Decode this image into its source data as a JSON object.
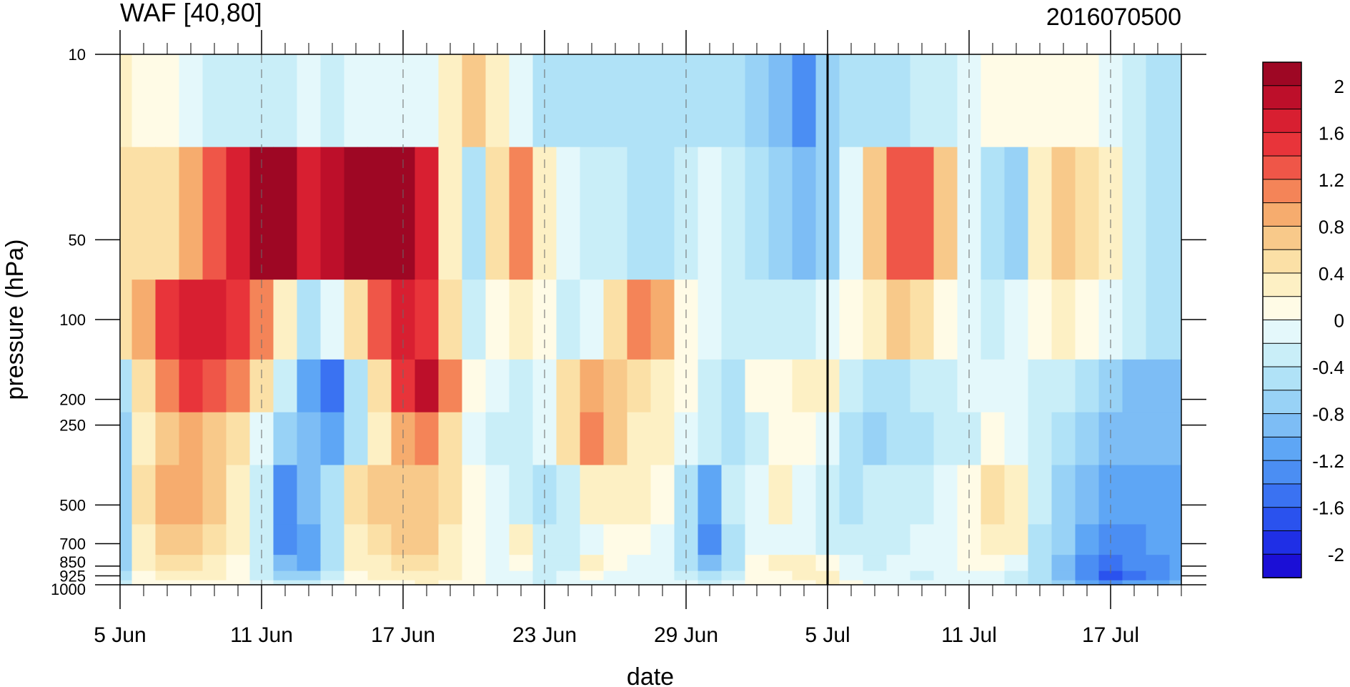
{
  "chart_data": {
    "type": "heatmap",
    "title": "WAF [40,80]",
    "subtitle": "2016070500",
    "xlabel": "date",
    "ylabel": "pressure (hPa)",
    "x": [
      "5 Jun",
      "6 Jun",
      "7 Jun",
      "8 Jun",
      "9 Jun",
      "10 Jun",
      "11 Jun",
      "12 Jun",
      "13 Jun",
      "14 Jun",
      "15 Jun",
      "16 Jun",
      "17 Jun",
      "18 Jun",
      "19 Jun",
      "20 Jun",
      "21 Jun",
      "22 Jun",
      "23 Jun",
      "24 Jun",
      "25 Jun",
      "26 Jun",
      "27 Jun",
      "28 Jun",
      "29 Jun",
      "30 Jun",
      "1 Jul",
      "2 Jul",
      "3 Jul",
      "4 Jul",
      "5 Jul",
      "6 Jul",
      "7 Jul",
      "8 Jul",
      "9 Jul",
      "10 Jul",
      "11 Jul",
      "12 Jul",
      "13 Jul",
      "14 Jul",
      "15 Jul",
      "16 Jul",
      "17 Jul",
      "18 Jul",
      "19 Jul",
      "20 Jul"
    ],
    "x_ticks": [
      "5 Jun",
      "11 Jun",
      "17 Jun",
      "23 Jun",
      "29 Jun",
      "5 Jul",
      "11 Jul",
      "17 Jul"
    ],
    "y_levels": [
      10,
      50,
      100,
      200,
      250,
      500,
      700,
      850,
      925,
      1000
    ],
    "y_ticks": [
      "10",
      "50",
      "100",
      "200",
      "250",
      "500",
      "700",
      "850",
      "925",
      "1000"
    ],
    "y_scale": "log",
    "y_inverted": true,
    "marker_date": "5 Jul",
    "colorbar": {
      "levels": [
        -2.2,
        -2,
        -1.8,
        -1.6,
        -1.4,
        -1.2,
        -1,
        -0.8,
        -0.6,
        -0.4,
        -0.2,
        0,
        0.2,
        0.4,
        0.6,
        0.8,
        1,
        1.2,
        1.4,
        1.6,
        1.8,
        2,
        2.2
      ],
      "labels": [
        "2",
        "1.6",
        "1.2",
        "0.8",
        "0.4",
        "0",
        "-0.4",
        "-0.8",
        "-1.2",
        "-1.6",
        "-2"
      ],
      "colors": [
        "#1b0fd6",
        "#1f2fe6",
        "#2a52ee",
        "#3a72f2",
        "#4b8ef3",
        "#5ea6f5",
        "#7dbdf5",
        "#98d2f6",
        "#b0e2f7",
        "#c9eef8",
        "#e4f8fb",
        "#fffbe6",
        "#fdf0c4",
        "#fbe0a6",
        "#f8c98a",
        "#f6ac6e",
        "#f48458",
        "#ef5648",
        "#e8343a",
        "#d81f31",
        "#bd0f2a",
        "#9e0724"
      ]
    },
    "values": [
      [
        0.3,
        0.0,
        0.0,
        -0.2,
        -0.3,
        -0.3,
        -0.3,
        -0.3,
        -0.2,
        -0.3,
        -0.2,
        -0.1,
        -0.2,
        -0.1,
        0.3,
        0.6,
        0.3,
        -0.2,
        -0.5,
        -0.6,
        -0.5,
        -0.5,
        -0.6,
        -0.6,
        -0.6,
        -0.5,
        -0.6,
        -0.7,
        -1.0,
        -1.3,
        -0.8,
        -0.6,
        -0.5,
        -0.5,
        -0.4,
        -0.3,
        -0.2,
        0.0,
        0.0,
        0.1,
        0.0,
        0.0,
        -0.2,
        -0.3,
        -0.5,
        -0.5
      ],
      [
        0.5,
        0.4,
        0.5,
        0.8,
        1.2,
        1.6,
        2.0,
        2.0,
        1.6,
        1.8,
        2.1,
        2.2,
        2.0,
        1.6,
        0.2,
        -0.5,
        0.4,
        1.0,
        0.3,
        -0.2,
        -0.3,
        -0.4,
        -0.5,
        -0.5,
        -0.3,
        -0.1,
        -0.4,
        -0.6,
        -0.8,
        -1.0,
        -0.7,
        -0.2,
        0.6,
        1.3,
        1.2,
        0.6,
        -0.1,
        -0.6,
        -0.7,
        0.3,
        0.6,
        0.5,
        0.2,
        -0.3,
        -0.5,
        -0.6
      ],
      [
        0.5,
        0.8,
        1.4,
        1.6,
        1.6,
        1.5,
        1.1,
        0.2,
        -0.5,
        -0.2,
        0.4,
        1.2,
        1.6,
        1.4,
        0.5,
        -0.4,
        0.0,
        0.3,
        0.0,
        -0.3,
        -0.1,
        0.5,
        1.0,
        0.8,
        0.1,
        -0.2,
        -0.3,
        -0.3,
        -0.3,
        -0.3,
        -0.2,
        0.1,
        0.3,
        0.6,
        0.4,
        0.1,
        -0.2,
        -0.3,
        -0.2,
        0.0,
        0.2,
        0.1,
        -0.2,
        -0.4,
        -0.5,
        -0.6
      ],
      [
        -0.5,
        0.4,
        1.1,
        1.4,
        1.3,
        1.0,
        0.4,
        -0.4,
        -1.2,
        -1.6,
        -0.5,
        0.4,
        1.4,
        1.8,
        1.0,
        0.0,
        -0.2,
        -0.3,
        -0.1,
        0.4,
        0.8,
        0.6,
        0.4,
        0.3,
        0.0,
        -0.3,
        -0.5,
        0.0,
        0.1,
        0.2,
        0.3,
        -0.4,
        -0.5,
        -0.5,
        -0.4,
        -0.3,
        -0.2,
        -0.1,
        -0.2,
        -0.3,
        -0.4,
        -0.6,
        -0.8,
        -0.9,
        -1.0,
        -0.9
      ],
      [
        -0.7,
        0.3,
        0.7,
        0.8,
        0.7,
        0.4,
        -0.2,
        -0.8,
        -1.0,
        -1.1,
        -0.6,
        0.3,
        0.9,
        1.1,
        0.5,
        -0.1,
        -0.3,
        -0.3,
        -0.2,
        0.5,
        1.0,
        0.6,
        0.3,
        0.2,
        -0.2,
        -0.4,
        -0.5,
        -0.3,
        0.1,
        0.0,
        -0.1,
        -0.6,
        -0.7,
        -0.6,
        -0.5,
        -0.4,
        -0.3,
        0.0,
        -0.2,
        -0.4,
        -0.6,
        -0.8,
        -0.9,
        -1.0,
        -1.0,
        -0.9
      ],
      [
        -0.8,
        0.4,
        0.8,
        0.8,
        0.6,
        0.3,
        -0.3,
        -1.3,
        -0.9,
        -0.5,
        0.4,
        0.6,
        0.6,
        0.6,
        0.4,
        0.0,
        -0.2,
        -0.3,
        -0.5,
        -0.3,
        0.2,
        0.3,
        0.3,
        0.1,
        -0.5,
        -1.2,
        -0.4,
        -0.1,
        0.2,
        -0.2,
        -0.3,
        -0.5,
        -0.4,
        -0.3,
        -0.3,
        -0.2,
        0.0,
        0.4,
        0.3,
        -0.4,
        -0.7,
        -0.9,
        -1.1,
        -1.2,
        -1.2,
        -1.1
      ],
      [
        -0.8,
        0.3,
        0.6,
        0.6,
        0.5,
        0.2,
        -0.4,
        -1.4,
        -1.2,
        -0.6,
        0.3,
        0.5,
        0.6,
        0.6,
        0.3,
        0.0,
        -0.1,
        0.2,
        -0.3,
        -0.4,
        -0.1,
        0.0,
        0.0,
        -0.1,
        -0.6,
        -1.4,
        -0.5,
        -0.2,
        -0.1,
        -0.2,
        -0.3,
        -0.4,
        -0.4,
        -0.3,
        -0.2,
        -0.2,
        0.0,
        0.3,
        0.2,
        -0.5,
        -0.8,
        -1.1,
        -1.3,
        -1.3,
        -1.2,
        -1.1
      ],
      [
        -0.7,
        0.2,
        0.4,
        0.4,
        0.3,
        0.1,
        -0.4,
        -1.0,
        -1.1,
        -0.5,
        0.2,
        0.3,
        0.4,
        0.5,
        0.3,
        0.0,
        -0.1,
        0.0,
        -0.3,
        -0.4,
        0.2,
        0.0,
        -0.1,
        -0.2,
        -0.5,
        -1.0,
        -0.5,
        0.1,
        0.2,
        0.2,
        0.1,
        -0.2,
        -0.3,
        -0.2,
        -0.2,
        -0.1,
        0.1,
        0.0,
        -0.2,
        -0.6,
        -0.9,
        -1.3,
        -1.5,
        -1.4,
        -1.3,
        -1.1
      ],
      [
        -0.5,
        0.1,
        0.2,
        0.2,
        0.2,
        0.0,
        -0.3,
        -0.7,
        -0.8,
        -0.4,
        0.1,
        0.2,
        0.3,
        0.3,
        0.2,
        0.0,
        -0.1,
        -0.2,
        -0.3,
        -0.2,
        0.0,
        -0.1,
        -0.1,
        -0.1,
        -0.3,
        -0.6,
        -0.3,
        0.1,
        0.1,
        0.2,
        0.2,
        -0.1,
        -0.2,
        -0.1,
        -0.3,
        -0.2,
        -0.1,
        -0.1,
        -0.3,
        -0.6,
        -0.9,
        -1.3,
        -1.7,
        -1.5,
        -1.3,
        -1.1
      ],
      [
        -0.3,
        0.0,
        0.1,
        0.1,
        0.1,
        0.0,
        -0.2,
        -0.4,
        -0.4,
        -0.2,
        0.0,
        0.1,
        0.1,
        0.2,
        0.1,
        0.0,
        -0.1,
        -0.2,
        -0.3,
        -0.2,
        -0.1,
        -0.1,
        -0.1,
        -0.1,
        -0.2,
        -0.3,
        -0.2,
        0.0,
        0.1,
        0.1,
        0.2,
        0.0,
        -0.1,
        -0.1,
        -0.2,
        -0.2,
        -0.1,
        -0.2,
        -0.3,
        -0.5,
        -0.8,
        -1.1,
        -1.3,
        -1.2,
        -1.1,
        -0.9
      ]
    ]
  }
}
